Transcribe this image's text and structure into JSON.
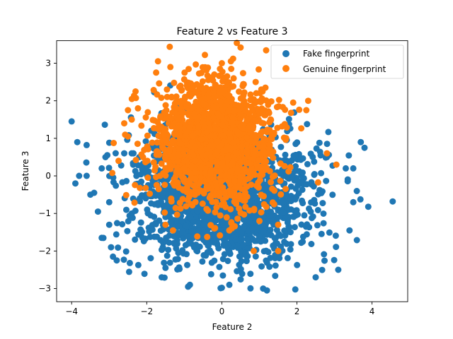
{
  "chart_data": {
    "type": "scatter",
    "title": "Feature 2 vs Feature 3",
    "xlabel": "Feature 2",
    "ylabel": "Feature 3",
    "xlim": [
      -4.4,
      4.95
    ],
    "ylim": [
      -3.35,
      3.6
    ],
    "xticks": [
      -4,
      -2,
      0,
      2,
      4
    ],
    "yticks": [
      -3,
      -2,
      -1,
      0,
      1,
      2,
      3
    ],
    "grid": false,
    "legend_position": "top-right",
    "series": [
      {
        "name": "Fake fingerprint",
        "color": "#1f77b4",
        "distribution": {
          "x_mean": 0.0,
          "x_std": 1.15,
          "y_mean": -0.55,
          "y_std": 0.85,
          "count": 2000
        },
        "points": [
          [
            -4.0,
            1.45
          ],
          [
            -3.9,
            -0.2
          ],
          [
            -3.85,
            0.9
          ],
          [
            -3.8,
            0.0
          ],
          [
            -3.6,
            0.82
          ],
          [
            -3.6,
            0.0
          ],
          [
            -3.4,
            -0.45
          ],
          [
            -3.3,
            -0.95
          ],
          [
            -3.2,
            0.2
          ],
          [
            -3.2,
            -1.65
          ],
          [
            -3.0,
            -0.7
          ],
          [
            -2.9,
            -2.15
          ],
          [
            -2.8,
            -2.25
          ],
          [
            -2.95,
            -1.9
          ],
          [
            -2.6,
            0.6
          ],
          [
            4.55,
            -0.68
          ],
          [
            3.7,
            0.9
          ],
          [
            3.8,
            0.75
          ],
          [
            3.9,
            -0.82
          ],
          [
            3.5,
            0.2
          ],
          [
            3.5,
            -0.7
          ],
          [
            3.4,
            -1.45
          ],
          [
            3.1,
            -2.5
          ],
          [
            2.5,
            -2.7
          ],
          [
            1.2,
            -3.05
          ],
          [
            1.1,
            -3.0
          ],
          [
            -0.9,
            -2.95
          ],
          [
            -0.85,
            -2.9
          ],
          [
            0.0,
            -2.98
          ],
          [
            0.2,
            -2.9
          ],
          [
            -1.6,
            -2.7
          ],
          [
            -1.5,
            -2.45
          ],
          [
            2.6,
            0.88
          ],
          [
            2.8,
            0.5
          ],
          [
            3.3,
            0.2
          ],
          [
            -2.4,
            0.6
          ],
          [
            -2.2,
            0.5
          ],
          [
            -3.1,
            0.5
          ],
          [
            -3.5,
            -0.5
          ],
          [
            -3.0,
            -1.3
          ]
        ]
      },
      {
        "name": "Genuine fingerprint",
        "color": "#ff7f0e",
        "distribution": {
          "x_mean": -0.15,
          "x_std": 0.8,
          "y_mean": 0.85,
          "y_std": 0.8,
          "count": 1600
        },
        "points": [
          [
            0.5,
            3.42
          ],
          [
            -0.45,
            3.22
          ],
          [
            -1.7,
            3.05
          ],
          [
            -1.75,
            2.75
          ],
          [
            0.0,
            3.0
          ],
          [
            0.3,
            3.12
          ],
          [
            0.25,
            2.85
          ],
          [
            -0.05,
            2.85
          ],
          [
            2.3,
            2.0
          ],
          [
            2.25,
            1.75
          ],
          [
            3.05,
            0.3
          ],
          [
            2.8,
            0.6
          ],
          [
            1.5,
            -2.0
          ],
          [
            0.85,
            -2.0
          ],
          [
            -2.5,
            1.75
          ],
          [
            -2.4,
            1.5
          ],
          [
            -2.5,
            1.05
          ],
          [
            -2.6,
            1.4
          ],
          [
            -2.75,
            0.4
          ],
          [
            -2.1,
            0.5
          ],
          [
            1.5,
            -1.3
          ],
          [
            1.0,
            -1.2
          ],
          [
            -1.3,
            -1.45
          ],
          [
            -1.5,
            -1.3
          ],
          [
            0.2,
            -1.45
          ],
          [
            -0.2,
            -1.4
          ],
          [
            1.9,
            1.95
          ],
          [
            -1.1,
            2.4
          ],
          [
            0.9,
            2.5
          ],
          [
            -0.2,
            2.7
          ]
        ]
      }
    ]
  }
}
